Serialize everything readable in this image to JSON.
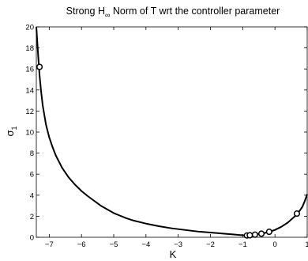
{
  "chart_data": {
    "type": "line",
    "title": {
      "prefix": "Strong H",
      "subscript": "∞",
      "suffix": " Norm of T wrt the controller parameter"
    },
    "xlabel": "K",
    "ylabel": {
      "main": "σ",
      "subscript": "1"
    },
    "xlim": [
      -7.4,
      1
    ],
    "ylim": [
      0,
      20
    ],
    "xticks": [
      -7,
      -6,
      -5,
      -4,
      -3,
      -2,
      -1,
      0,
      1
    ],
    "yticks": [
      0,
      2,
      4,
      6,
      8,
      10,
      12,
      14,
      16,
      18,
      20
    ],
    "grid": false,
    "series": [
      {
        "x": [
          -7.4,
          -7.35,
          -7.3,
          -7.25,
          -7.2,
          -7.1,
          -7.0,
          -6.9,
          -6.8,
          -6.6,
          -6.4,
          -6.2,
          -6.0,
          -5.8,
          -5.6,
          -5.4,
          -5.2,
          -5.0,
          -4.8,
          -4.6,
          -4.4,
          -4.2,
          -4.0,
          -3.6,
          -3.2,
          -2.8,
          -2.4,
          -2.0,
          -1.6,
          -1.3,
          -1.1,
          -0.9,
          -0.85,
          -0.75,
          -0.6,
          -0.4,
          -0.2,
          0.0,
          0.2,
          0.4,
          0.6,
          0.75,
          0.85,
          0.92,
          1.0
        ],
        "y": [
          20.0,
          17.6,
          15.4,
          13.8,
          12.5,
          10.7,
          9.5,
          8.6,
          7.8,
          6.6,
          5.7,
          5.0,
          4.4,
          3.9,
          3.45,
          3.0,
          2.65,
          2.3,
          2.05,
          1.8,
          1.6,
          1.45,
          1.3,
          1.05,
          0.85,
          0.7,
          0.55,
          0.45,
          0.35,
          0.27,
          0.22,
          0.18,
          0.17,
          0.2,
          0.26,
          0.35,
          0.5,
          0.7,
          1.0,
          1.4,
          1.95,
          2.45,
          2.9,
          3.4,
          4.1
        ]
      }
    ],
    "markers": {
      "style": "open-circle",
      "points": [
        {
          "x": -7.3,
          "y": 16.2
        },
        {
          "x": -0.87,
          "y": 0.17
        },
        {
          "x": -0.78,
          "y": 0.19
        },
        {
          "x": -0.62,
          "y": 0.25
        },
        {
          "x": -0.42,
          "y": 0.34
        },
        {
          "x": -0.18,
          "y": 0.52
        },
        {
          "x": 0.68,
          "y": 2.25
        }
      ]
    }
  }
}
